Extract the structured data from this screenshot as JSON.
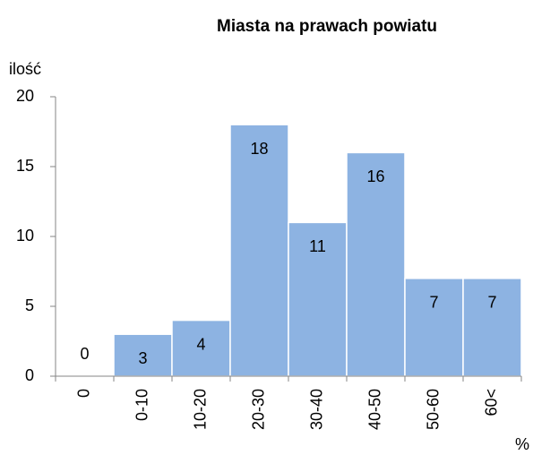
{
  "chart_data": {
    "type": "bar",
    "title": "Miasta na prawach powiatu",
    "y_label": "ilość",
    "x_label": "%",
    "categories": [
      "0",
      "0-10",
      "10-20",
      "20-30",
      "30-40",
      "40-50",
      "50-60",
      "60<"
    ],
    "values": [
      0,
      3,
      4,
      18,
      11,
      16,
      7,
      7
    ],
    "color": "#8db3e2",
    "ylim": [
      0,
      20
    ],
    "yticks": [
      0,
      5,
      10,
      15,
      20
    ],
    "grid": false
  }
}
